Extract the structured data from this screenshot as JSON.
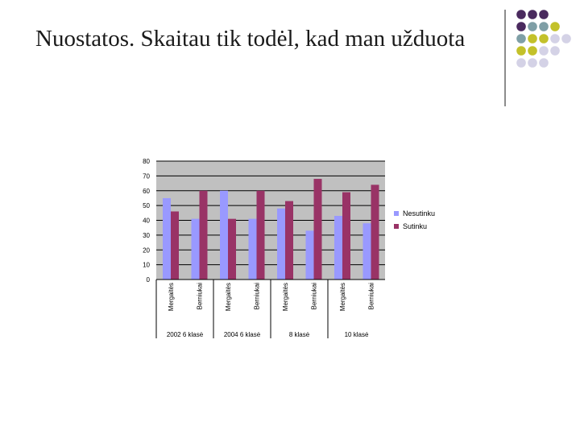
{
  "slide": {
    "title": "Nuostatos. Skaitau tik todėl, kad man užduota"
  },
  "decoration": {
    "dot_colors": [
      "#4a2a5e",
      "#7f9fa6",
      "#c3c12a",
      "#d4d2e6"
    ]
  },
  "chart_data": {
    "type": "bar",
    "categories": [
      "Mergaitės",
      "Berniukai",
      "Mergaitės",
      "Berniukai",
      "Mergaitės",
      "Berniukai",
      "Mergaitės",
      "Berniukai"
    ],
    "groups": [
      "2002 6 klasė",
      "2004 6 klasė",
      "8 klasė",
      "10 klasė"
    ],
    "series": [
      {
        "name": "Nesutinku",
        "color": "#9999ff",
        "values": [
          55,
          41,
          60,
          41,
          48,
          33,
          43,
          38
        ]
      },
      {
        "name": "Sutinku",
        "color": "#993366",
        "values": [
          46,
          60,
          41,
          60,
          53,
          68,
          59,
          64
        ]
      }
    ],
    "yticks": [
      "0",
      "10",
      "20",
      "30",
      "40",
      "50",
      "60",
      "70",
      "80"
    ],
    "ylim": [
      0,
      80
    ],
    "grid": true,
    "legend": "right",
    "plot_background": "#c0c0c0"
  }
}
